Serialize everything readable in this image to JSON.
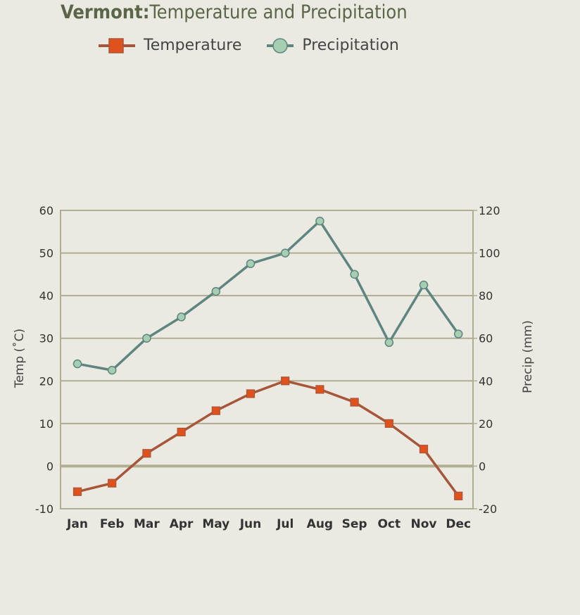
{
  "title": {
    "state": "Vermont:",
    "text": "Temperature and Precipitation"
  },
  "legend": {
    "temperature": "Temperature",
    "precipitation": "Precipitation"
  },
  "colors": {
    "temperature_line": "#a8563a",
    "temperature_marker": "#e0521c",
    "precipitation_line": "#5e8580",
    "precipitation_marker": "#a6cfb2",
    "grid": "#b0ad90",
    "background": "#ebeae2"
  },
  "chart_data": {
    "type": "line",
    "title": "Vermont: Temperature and Precipitation",
    "categories": [
      "Jan",
      "Feb",
      "Mar",
      "Apr",
      "May",
      "Jun",
      "Jul",
      "Aug",
      "Sep",
      "Oct",
      "Nov",
      "Dec"
    ],
    "series": [
      {
        "name": "Temperature",
        "axis": "left",
        "values": [
          -6,
          -4,
          3,
          8,
          13,
          17,
          20,
          18,
          15,
          10,
          4,
          -7
        ]
      },
      {
        "name": "Precipitation",
        "axis": "right",
        "values": [
          48,
          45,
          60,
          70,
          82,
          95,
          100,
          115,
          90,
          58,
          85,
          62
        ]
      }
    ],
    "ylabel": "Temp (˚C)",
    "y2label": "Precip (mm)",
    "ylim": [
      -10,
      60
    ],
    "y2lim": [
      -20,
      120
    ],
    "yticks": [
      "60",
      "50",
      "40",
      "30",
      "20",
      "10",
      "0",
      "-10"
    ],
    "y2ticks": [
      "120",
      "100",
      "80",
      "60",
      "40",
      "20",
      "0",
      "-20"
    ],
    "grid": true,
    "legend_position": "top"
  }
}
